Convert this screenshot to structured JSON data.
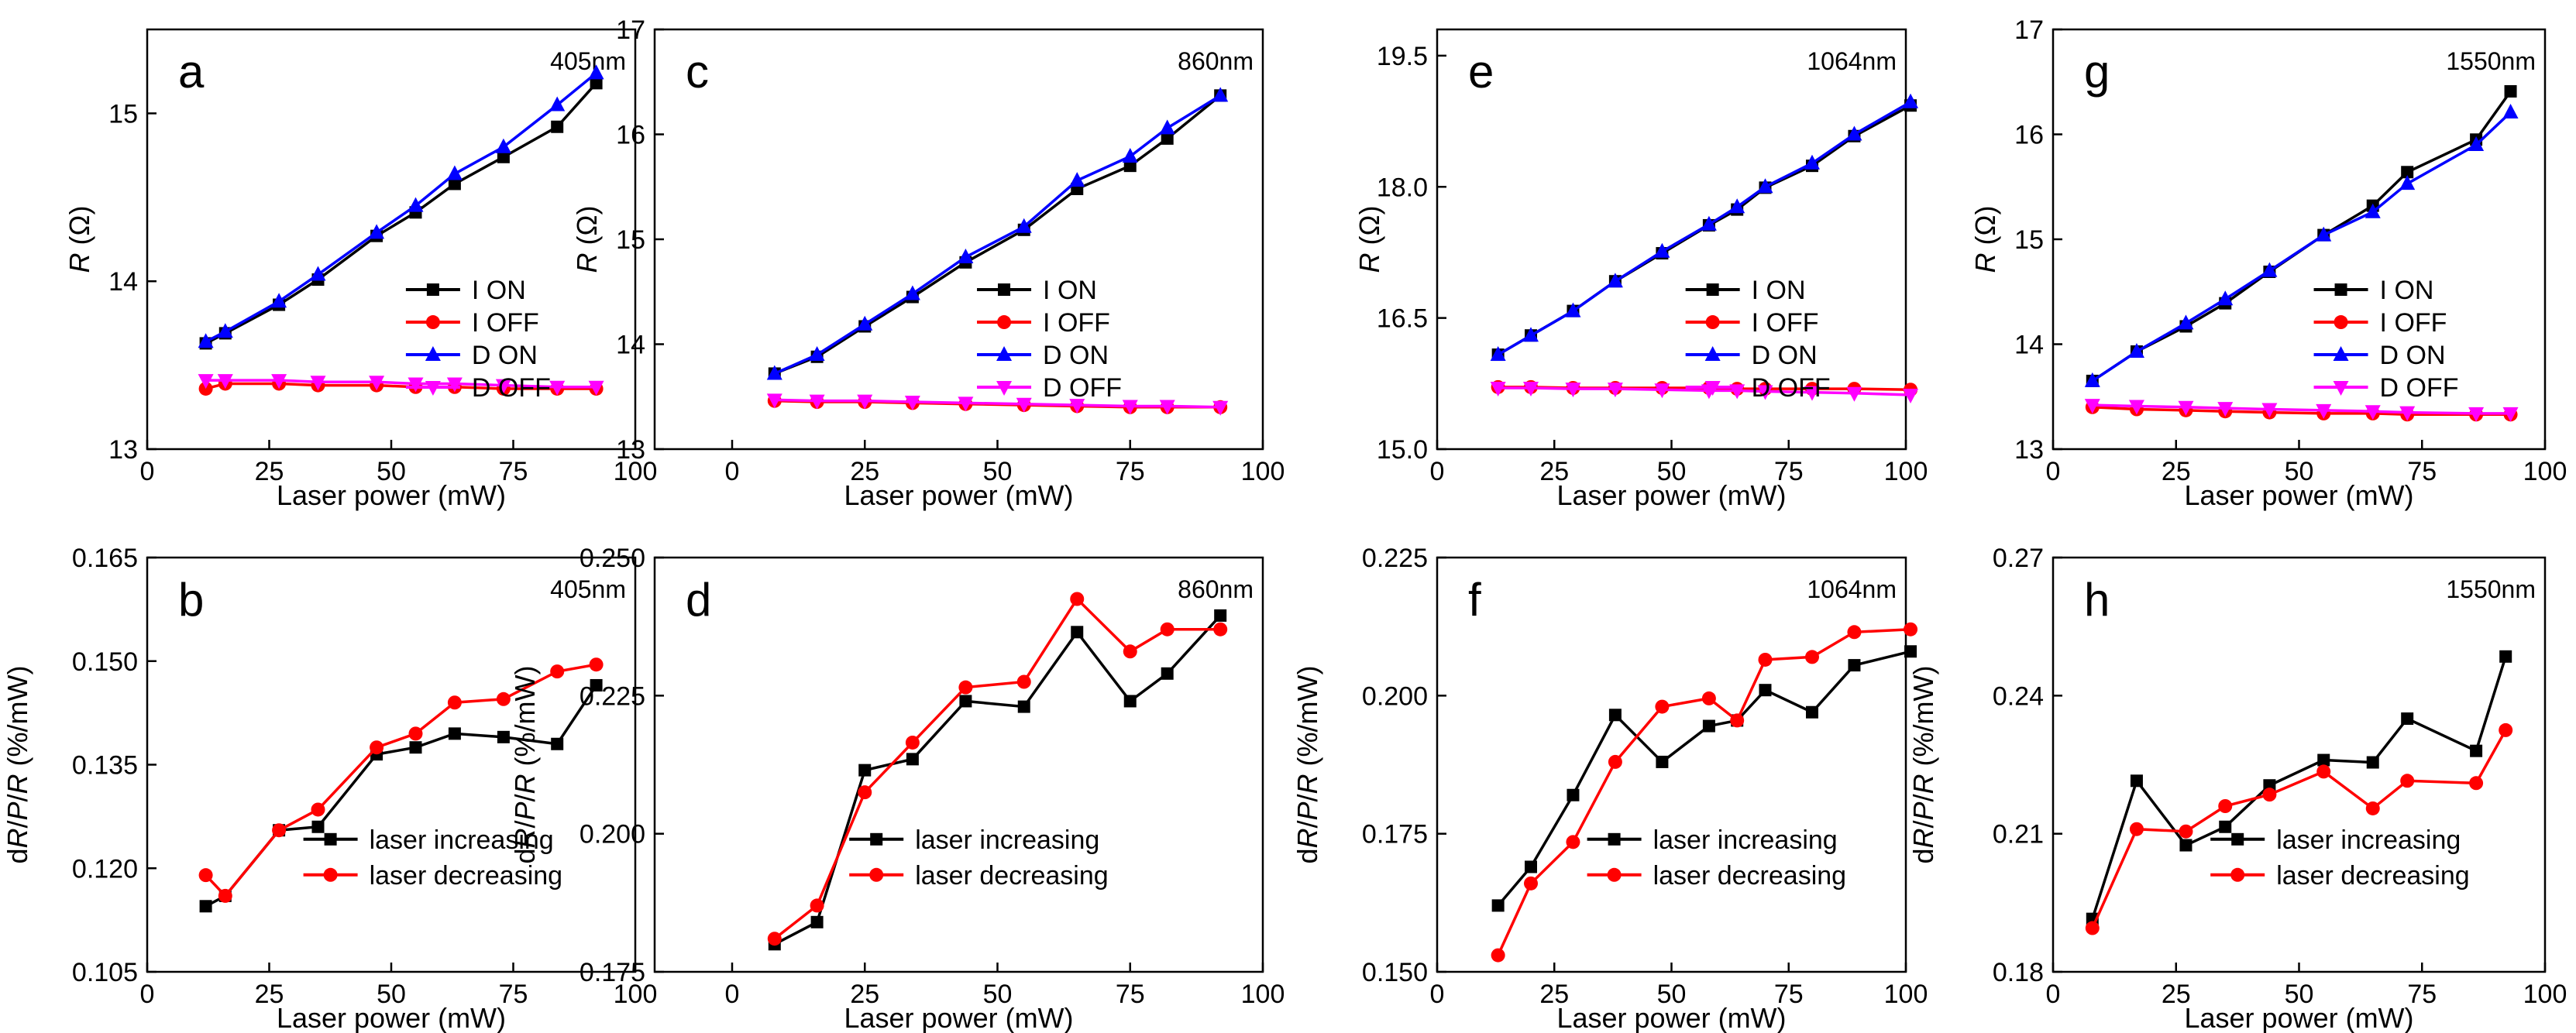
{
  "figure": {
    "panels": [
      {
        "letter": "a",
        "wavelength": "405nm"
      },
      {
        "letter": "b",
        "wavelength": "405nm"
      },
      {
        "letter": "c",
        "wavelength": "860nm"
      },
      {
        "letter": "d",
        "wavelength": "860nm"
      },
      {
        "letter": "e",
        "wavelength": "1064nm"
      },
      {
        "letter": "f",
        "wavelength": "1064nm"
      },
      {
        "letter": "g",
        "wavelength": "1550nm"
      },
      {
        "letter": "h",
        "wavelength": "1550nm"
      }
    ]
  },
  "chart_data": [
    {
      "id": "a",
      "type": "line",
      "title": "",
      "xlabel": "Laser power (mW)",
      "ylabel": "R (Ω)",
      "xlim": [
        0,
        100
      ],
      "ylim": [
        13,
        15.5
      ],
      "xticks": [
        "0",
        "25",
        "50",
        "75",
        "100"
      ],
      "yticks": [
        "13",
        "14",
        "15"
      ],
      "legend": [
        "I ON",
        "I OFF",
        "D ON",
        "D OFF"
      ],
      "series": [
        {
          "name": "I ON",
          "color": "#000000",
          "marker": "square",
          "x": [
            12,
            16,
            27,
            35,
            47,
            55,
            63,
            73,
            84,
            92
          ],
          "y": [
            13.63,
            13.69,
            13.86,
            14.01,
            14.27,
            14.41,
            14.58,
            14.74,
            14.92,
            15.18
          ]
        },
        {
          "name": "I OFF",
          "color": "#ff0000",
          "marker": "circle",
          "x": [
            12,
            16,
            27,
            35,
            47,
            55,
            63,
            73,
            84,
            92
          ],
          "y": [
            13.36,
            13.39,
            13.39,
            13.38,
            13.38,
            13.37,
            13.37,
            13.36,
            13.36,
            13.36
          ]
        },
        {
          "name": "D ON",
          "color": "#0000ff",
          "marker": "triangle",
          "x": [
            12,
            16,
            27,
            35,
            47,
            55,
            63,
            73,
            84,
            92
          ],
          "y": [
            13.64,
            13.7,
            13.88,
            14.04,
            14.29,
            14.45,
            14.64,
            14.8,
            15.05,
            15.24
          ]
        },
        {
          "name": "D OFF",
          "color": "#ff00ff",
          "marker": "triangle-down",
          "x": [
            12,
            16,
            27,
            35,
            47,
            55,
            63,
            73,
            84,
            92
          ],
          "y": [
            13.41,
            13.41,
            13.41,
            13.4,
            13.4,
            13.39,
            13.39,
            13.38,
            13.37,
            13.37
          ]
        }
      ]
    },
    {
      "id": "b",
      "type": "line",
      "title": "",
      "xlabel": "Laser power (mW)",
      "ylabel": "dR/P/R (%/mW)",
      "xlim": [
        0,
        100
      ],
      "ylim": [
        0.105,
        0.165
      ],
      "xticks": [
        "0",
        "25",
        "50",
        "75",
        "100"
      ],
      "yticks": [
        "0.105",
        "0.120",
        "0.135",
        "0.150",
        "0.165"
      ],
      "legend": [
        "laser increasing",
        "laser decreasing"
      ],
      "series": [
        {
          "name": "laser increasing",
          "color": "#000000",
          "marker": "square",
          "x": [
            12,
            16,
            27,
            35,
            47,
            55,
            63,
            73,
            84,
            92
          ],
          "y": [
            0.1145,
            0.116,
            0.1255,
            0.126,
            0.1365,
            0.1375,
            0.1395,
            0.139,
            0.138,
            0.1465
          ]
        },
        {
          "name": "laser decreasing",
          "color": "#ff0000",
          "marker": "circle",
          "x": [
            12,
            16,
            27,
            35,
            47,
            55,
            63,
            73,
            84,
            92
          ],
          "y": [
            0.119,
            0.116,
            0.1255,
            0.1285,
            0.1375,
            0.1395,
            0.144,
            0.1445,
            0.1485,
            0.1495
          ]
        }
      ]
    },
    {
      "id": "c",
      "type": "line",
      "title": "",
      "xlabel": "Laser power (mW)",
      "ylabel": "R (Ω)",
      "xlim": [
        0,
        100
      ],
      "ylim": [
        13,
        17
      ],
      "xticks": [
        "0",
        "25",
        "50",
        "75",
        "100"
      ],
      "yticks": [
        "13",
        "14",
        "15",
        "16",
        "17"
      ],
      "legend": [
        "I ON",
        "I OFF",
        "D ON",
        "D OFF"
      ],
      "series": [
        {
          "name": "I ON",
          "color": "#000000",
          "marker": "square",
          "x": [
            8,
            16,
            25,
            34,
            44,
            55,
            65,
            75,
            82,
            92
          ],
          "y": [
            13.72,
            13.88,
            14.17,
            14.45,
            14.78,
            15.09,
            15.48,
            15.7,
            15.96,
            16.37
          ]
        },
        {
          "name": "I OFF",
          "color": "#ff0000",
          "marker": "circle",
          "x": [
            8,
            16,
            25,
            34,
            44,
            55,
            65,
            75,
            82,
            92
          ],
          "y": [
            13.46,
            13.45,
            13.45,
            13.44,
            13.43,
            13.42,
            13.41,
            13.4,
            13.4,
            13.4
          ]
        },
        {
          "name": "D ON",
          "color": "#0000ff",
          "marker": "triangle",
          "x": [
            8,
            16,
            25,
            34,
            44,
            55,
            65,
            75,
            82,
            92
          ],
          "y": [
            13.72,
            13.9,
            14.19,
            14.48,
            14.83,
            15.12,
            15.56,
            15.79,
            16.06,
            16.37
          ]
        },
        {
          "name": "D OFF",
          "color": "#ff00ff",
          "marker": "triangle-down",
          "x": [
            8,
            16,
            25,
            34,
            44,
            55,
            65,
            75,
            82,
            92
          ],
          "y": [
            13.47,
            13.46,
            13.46,
            13.45,
            13.44,
            13.43,
            13.42,
            13.41,
            13.41,
            13.4
          ]
        }
      ]
    },
    {
      "id": "d",
      "type": "line",
      "title": "",
      "xlabel": "Laser power (mW)",
      "ylabel": "dR/P/R (%/mW)",
      "xlim": [
        0,
        100
      ],
      "ylim": [
        0.175,
        0.25
      ],
      "xticks": [
        "0",
        "25",
        "50",
        "75",
        "100"
      ],
      "yticks": [
        "0.175",
        "0.200",
        "0.225",
        "0.250"
      ],
      "legend": [
        "laser increasing",
        "laser decreasing"
      ],
      "series": [
        {
          "name": "laser increasing",
          "color": "#000000",
          "marker": "square",
          "x": [
            8,
            16,
            25,
            34,
            44,
            55,
            65,
            75,
            82,
            92
          ],
          "y": [
            0.18,
            0.184,
            0.2115,
            0.2135,
            0.224,
            0.223,
            0.2365,
            0.224,
            0.229,
            0.2395
          ]
        },
        {
          "name": "laser decreasing",
          "color": "#ff0000",
          "marker": "circle",
          "x": [
            8,
            16,
            25,
            34,
            44,
            55,
            65,
            75,
            82,
            92
          ],
          "y": [
            0.181,
            0.187,
            0.2075,
            0.2165,
            0.2265,
            0.2275,
            0.2425,
            0.233,
            0.237,
            0.237
          ]
        }
      ]
    },
    {
      "id": "e",
      "type": "line",
      "title": "",
      "xlabel": "Laser power (mW)",
      "ylabel": "R (Ω)",
      "xlim": [
        0,
        100
      ],
      "ylim": [
        15,
        19.8
      ],
      "xticks": [
        "0",
        "25",
        "50",
        "75",
        "100"
      ],
      "yticks": [
        "15.0",
        "16.5",
        "18.0",
        "19.5"
      ],
      "legend": [
        "I ON",
        "I OFF",
        "D ON",
        "D OFF"
      ],
      "series": [
        {
          "name": "I ON",
          "color": "#000000",
          "marker": "square",
          "x": [
            13,
            20,
            29,
            38,
            48,
            58,
            64,
            70,
            80,
            89,
            101
          ],
          "y": [
            16.08,
            16.3,
            16.58,
            16.92,
            17.24,
            17.56,
            17.74,
            17.99,
            18.24,
            18.58,
            18.93
          ]
        },
        {
          "name": "I OFF",
          "color": "#ff0000",
          "marker": "circle",
          "x": [
            13,
            20,
            29,
            38,
            48,
            58,
            64,
            70,
            80,
            89,
            101
          ],
          "y": [
            15.71,
            15.71,
            15.7,
            15.7,
            15.7,
            15.7,
            15.69,
            15.69,
            15.69,
            15.69,
            15.68
          ]
        },
        {
          "name": "D ON",
          "color": "#0000ff",
          "marker": "triangle",
          "x": [
            13,
            20,
            29,
            38,
            48,
            58,
            64,
            70,
            80,
            89,
            101
          ],
          "y": [
            16.08,
            16.3,
            16.58,
            16.92,
            17.26,
            17.57,
            17.77,
            18.0,
            18.27,
            18.6,
            18.97
          ]
        },
        {
          "name": "D OFF",
          "color": "#ff00ff",
          "marker": "triangle-down",
          "x": [
            13,
            20,
            29,
            38,
            48,
            58,
            64,
            70,
            80,
            89,
            101
          ],
          "y": [
            15.7,
            15.7,
            15.69,
            15.69,
            15.68,
            15.67,
            15.67,
            15.66,
            15.65,
            15.64,
            15.62
          ]
        }
      ]
    },
    {
      "id": "f",
      "type": "line",
      "title": "",
      "xlabel": "Laser power (mW)",
      "ylabel": "dR/P/R (%/mW)",
      "xlim": [
        0,
        100
      ],
      "ylim": [
        0.15,
        0.225
      ],
      "xticks": [
        "0",
        "25",
        "50",
        "75",
        "100"
      ],
      "yticks": [
        "0.150",
        "0.175",
        "0.200",
        "0.225"
      ],
      "legend": [
        "laser increasing",
        "laser decreasing"
      ],
      "series": [
        {
          "name": "laser increasing",
          "color": "#000000",
          "marker": "square",
          "x": [
            13,
            20,
            29,
            38,
            48,
            58,
            64,
            70,
            80,
            89,
            101
          ],
          "y": [
            0.162,
            0.169,
            0.182,
            0.1965,
            0.188,
            0.1945,
            0.1955,
            0.201,
            0.197,
            0.2055,
            0.208
          ]
        },
        {
          "name": "laser decreasing",
          "color": "#ff0000",
          "marker": "circle",
          "x": [
            13,
            20,
            29,
            38,
            48,
            58,
            64,
            70,
            80,
            89,
            101
          ],
          "y": [
            0.153,
            0.166,
            0.1735,
            0.188,
            0.198,
            0.1995,
            0.1955,
            0.2065,
            0.207,
            0.2115,
            0.212
          ]
        }
      ]
    },
    {
      "id": "g",
      "type": "line",
      "title": "",
      "xlabel": "Laser power (mW)",
      "ylabel": "R (Ω)",
      "xlim": [
        0,
        100
      ],
      "ylim": [
        13,
        17
      ],
      "xticks": [
        "0",
        "25",
        "50",
        "75",
        "100"
      ],
      "yticks": [
        "13",
        "14",
        "15",
        "16",
        "17"
      ],
      "legend": [
        "I ON",
        "I OFF",
        "D ON",
        "D OFF"
      ],
      "series": [
        {
          "name": "I ON",
          "color": "#000000",
          "marker": "square",
          "x": [
            8,
            17,
            27,
            35,
            44,
            55,
            65,
            72,
            86,
            93
          ],
          "y": [
            13.65,
            13.93,
            14.17,
            14.39,
            14.69,
            15.04,
            15.32,
            15.64,
            15.95,
            16.41
          ]
        },
        {
          "name": "I OFF",
          "color": "#ff0000",
          "marker": "circle",
          "x": [
            8,
            17,
            27,
            35,
            44,
            55,
            65,
            72,
            86,
            93
          ],
          "y": [
            13.4,
            13.38,
            13.37,
            13.36,
            13.35,
            13.34,
            13.34,
            13.33,
            13.33,
            13.33
          ]
        },
        {
          "name": "D ON",
          "color": "#0000ff",
          "marker": "triangle",
          "x": [
            8,
            17,
            27,
            35,
            44,
            55,
            65,
            72,
            86,
            93
          ],
          "y": [
            13.65,
            13.93,
            14.2,
            14.43,
            14.7,
            15.04,
            15.26,
            15.53,
            15.9,
            16.21
          ]
        },
        {
          "name": "D OFF",
          "color": "#ff00ff",
          "marker": "triangle-down",
          "x": [
            8,
            17,
            27,
            35,
            44,
            55,
            65,
            72,
            86,
            93
          ],
          "y": [
            13.42,
            13.41,
            13.4,
            13.39,
            13.38,
            13.37,
            13.36,
            13.35,
            13.34,
            13.34
          ]
        }
      ]
    },
    {
      "id": "h",
      "type": "line",
      "title": "",
      "xlabel": "Laser power (mW)",
      "ylabel": "dR/P/R (%/mW)",
      "xlim": [
        0,
        100
      ],
      "ylim": [
        0.18,
        0.27
      ],
      "xticks": [
        "0",
        "25",
        "50",
        "75",
        "100"
      ],
      "yticks": [
        "0.18",
        "0.21",
        "0.24",
        "0.27"
      ],
      "legend": [
        "laser increasing",
        "laser decreasing"
      ],
      "series": [
        {
          "name": "laser increasing",
          "color": "#000000",
          "marker": "square",
          "x": [
            8,
            17,
            27,
            35,
            44,
            55,
            65,
            72,
            86,
            92
          ],
          "y": [
            0.1915,
            0.2215,
            0.2075,
            0.2115,
            0.2205,
            0.226,
            0.2255,
            0.235,
            0.228,
            0.2485
          ]
        },
        {
          "name": "laser decreasing",
          "color": "#ff0000",
          "marker": "circle",
          "x": [
            8,
            17,
            27,
            35,
            44,
            55,
            65,
            72,
            86,
            92
          ],
          "y": [
            0.1895,
            0.211,
            0.2105,
            0.216,
            0.2185,
            0.2235,
            0.2155,
            0.2215,
            0.221,
            0.2325
          ]
        }
      ]
    }
  ]
}
